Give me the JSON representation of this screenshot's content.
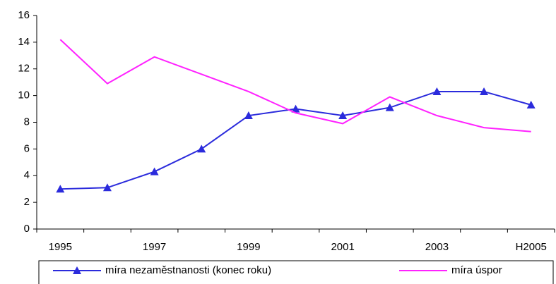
{
  "chart_data": {
    "type": "line",
    "categories": [
      "1995",
      null,
      "1997",
      null,
      "1999",
      null,
      "2001",
      null,
      "2003",
      null,
      "H2005"
    ],
    "series": [
      {
        "name": "míra nezaměstnanosti (konec roku)",
        "color": "#2b2bdc",
        "marker": "triangle",
        "values": [
          3.0,
          3.1,
          4.3,
          6.0,
          8.5,
          9.0,
          8.5,
          9.1,
          10.3,
          10.3,
          9.3
        ]
      },
      {
        "name": "míra úspor",
        "color": "#ff22ff",
        "values": [
          14.2,
          10.9,
          12.9,
          11.6,
          10.3,
          8.7,
          7.9,
          9.9,
          8.5,
          7.6,
          7.3
        ]
      }
    ],
    "ylim": [
      0,
      16
    ],
    "yticks": [
      0,
      2,
      4,
      6,
      8,
      10,
      12,
      14,
      16
    ],
    "grid": false,
    "legend": "bottom"
  }
}
